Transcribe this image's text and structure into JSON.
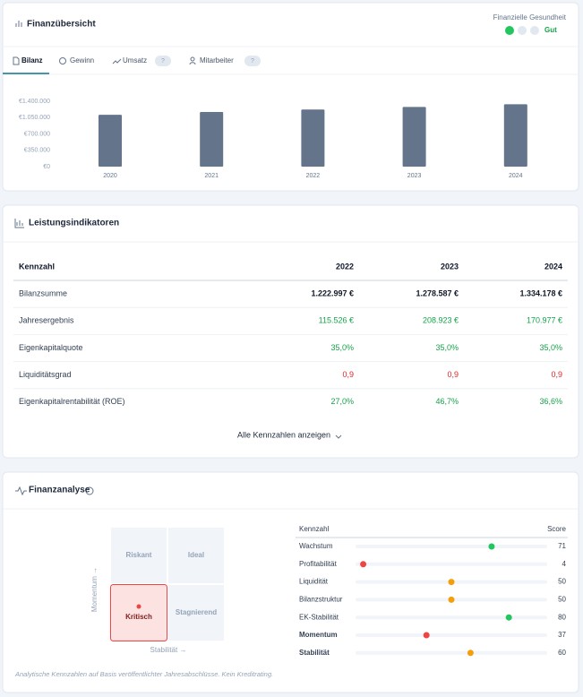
{
  "overview": {
    "title": "Finanzübersicht",
    "health": {
      "label": "Finanzielle Gesundheit",
      "status": "Gut",
      "indicator_colors": [
        "#22c55e",
        "#e2e8f0",
        "#e2e8f0"
      ]
    },
    "tabs": [
      {
        "label": "Bilanz",
        "active": true
      },
      {
        "label": "Gewinn"
      },
      {
        "label": "Umsatz",
        "badge": "?"
      },
      {
        "label": "Mitarbeiter",
        "badge": "?"
      }
    ],
    "chart_data": {
      "type": "bar",
      "categories": [
        "2020",
        "2021",
        "2022",
        "2023",
        "2024"
      ],
      "values": [
        1110000,
        1170000,
        1222997,
        1278587,
        1334178
      ],
      "color": "#64748b",
      "ylim": [
        0,
        1400000
      ],
      "yticks": [
        {
          "value": 0,
          "label": "€0"
        },
        {
          "value": 350000,
          "label": "€350.000"
        },
        {
          "value": 700000,
          "label": "€700.000"
        },
        {
          "value": 1050000,
          "label": "€1.050.000"
        },
        {
          "value": 1400000,
          "label": "€1.400.000"
        }
      ]
    }
  },
  "indicators": {
    "title": "Leistungsindikatoren",
    "columns": [
      "Kennzahl",
      "2022",
      "2023",
      "2024"
    ],
    "rows": [
      {
        "label": "Bilanzsumme",
        "values": [
          "1.222.997 €",
          "1.278.587 €",
          "1.334.178 €"
        ],
        "color": "#111827",
        "bold": true
      },
      {
        "label": "Jahresergebnis",
        "values": [
          "115.526 €",
          "208.923 €",
          "170.977 €"
        ],
        "color": "#16a34a"
      },
      {
        "label": "Eigenkapitalquote",
        "values": [
          "35,0%",
          "35,0%",
          "35,0%"
        ],
        "color": "#16a34a"
      },
      {
        "label": "Liquiditätsgrad",
        "values": [
          "0,9",
          "0,9",
          "0,9"
        ],
        "color": "#dc2626"
      },
      {
        "label": "Eigenkapitalrentabilität (ROE)",
        "values": [
          "27,0%",
          "46,7%",
          "36,6%"
        ],
        "color": "#16a34a"
      }
    ],
    "link": "Alle Kennzahlen anzeigen"
  },
  "analysis": {
    "title": "Finanzanalyse",
    "matrix": {
      "quadrants": [
        "Riskant",
        "Ideal",
        "Kritisch",
        "Stagnierend"
      ],
      "active_quadrant": 2,
      "y_label": "Momentum →",
      "x_label": "Stabilität →"
    },
    "scores": {
      "columns": [
        "Kennzahl",
        "Score"
      ],
      "xlim": [
        0,
        100
      ],
      "rows": [
        {
          "label": "Wachstum",
          "value": 71,
          "color": "#22c55e"
        },
        {
          "label": "Profitabilität",
          "value": 4,
          "color": "#ef4444"
        },
        {
          "label": "Liquidität",
          "value": 50,
          "color": "#f59e0b"
        },
        {
          "label": "Bilanzstruktur",
          "value": 50,
          "color": "#f59e0b"
        },
        {
          "label": "EK-Stabilität",
          "value": 80,
          "color": "#22c55e"
        },
        {
          "label": "Momentum",
          "value": 37,
          "color": "#ef4444",
          "bold": true
        },
        {
          "label": "Stabilität",
          "value": 60,
          "color": "#f59e0b",
          "bold": true
        }
      ]
    },
    "note": "Analytische Kennzahlen auf Basis veröffentlichter Jahresabschlüsse. Kein Kreditrating."
  }
}
